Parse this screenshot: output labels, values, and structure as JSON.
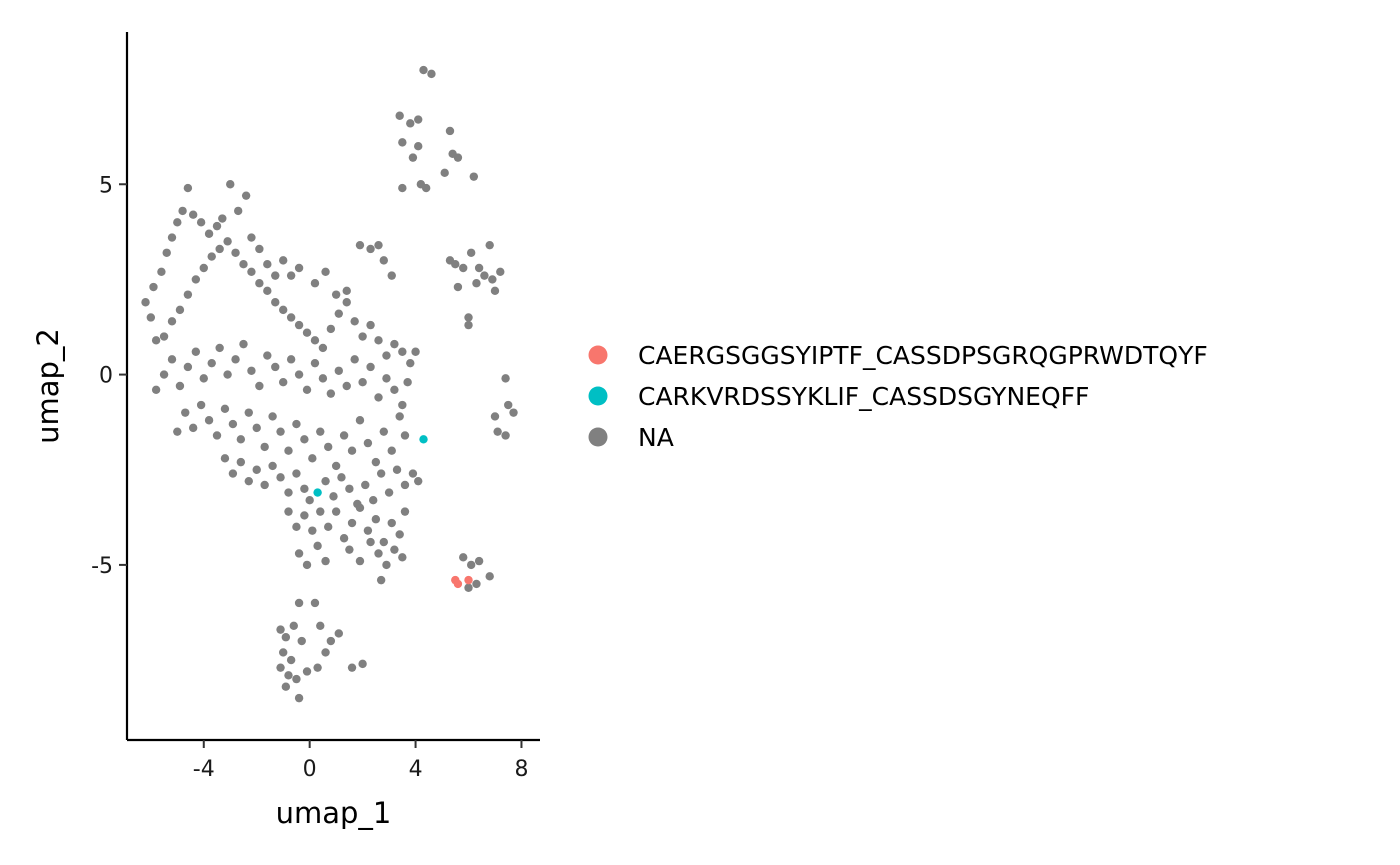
{
  "chart_data": {
    "type": "scatter",
    "xlabel": "umap_1",
    "ylabel": "umap_2",
    "xlim": [
      -6.9,
      8.7
    ],
    "ylim": [
      -9.6,
      9.0
    ],
    "x_ticks": [
      {
        "value": -4,
        "label": "-4"
      },
      {
        "value": 0,
        "label": "0"
      },
      {
        "value": 4,
        "label": "4"
      },
      {
        "value": 8,
        "label": "8"
      }
    ],
    "y_ticks": [
      {
        "value": -5,
        "label": "-5"
      },
      {
        "value": 0,
        "label": "0"
      },
      {
        "value": 5,
        "label": "5"
      }
    ],
    "grid": false,
    "legend_position": "right",
    "series": [
      {
        "name": "CAERGSGGSYIPTF_CASSDPSGRQGPRWDTQYF",
        "color": "#F8766D",
        "points": [
          [
            5.5,
            -5.4
          ],
          [
            5.6,
            -5.5
          ],
          [
            6.0,
            -5.4
          ]
        ]
      },
      {
        "name": "CARKVRDSSYKLIF_CASSDSGYNEQFF",
        "color": "#00BFC4",
        "points": [
          [
            4.3,
            -1.7
          ],
          [
            0.3,
            -3.1
          ]
        ]
      },
      {
        "name": "NA",
        "color": "#808080",
        "points": [
          [
            -6.2,
            1.9
          ],
          [
            -6.0,
            1.5
          ],
          [
            -5.8,
            0.9
          ],
          [
            -5.9,
            2.3
          ],
          [
            -5.6,
            2.7
          ],
          [
            -5.4,
            3.2
          ],
          [
            -5.2,
            3.6
          ],
          [
            -5.0,
            4.0
          ],
          [
            -4.8,
            4.3
          ],
          [
            -4.6,
            4.9
          ],
          [
            -4.4,
            4.2
          ],
          [
            -4.1,
            4.0
          ],
          [
            -3.8,
            3.7
          ],
          [
            -3.5,
            3.9
          ],
          [
            -3.3,
            4.1
          ],
          [
            -3.0,
            5.0
          ],
          [
            -2.7,
            4.3
          ],
          [
            -2.4,
            4.7
          ],
          [
            -2.2,
            3.6
          ],
          [
            -1.9,
            3.3
          ],
          [
            -1.6,
            2.9
          ],
          [
            -1.3,
            2.6
          ],
          [
            -1.0,
            3.0
          ],
          [
            -0.7,
            2.6
          ],
          [
            -0.4,
            2.8
          ],
          [
            0.2,
            2.4
          ],
          [
            0.6,
            2.7
          ],
          [
            1.0,
            2.1
          ],
          [
            1.4,
            2.2
          ],
          [
            1.9,
            3.4
          ],
          [
            2.3,
            3.3
          ],
          [
            2.6,
            3.4
          ],
          [
            2.8,
            3.0
          ],
          [
            3.1,
            2.6
          ],
          [
            -5.5,
            1.0
          ],
          [
            -5.2,
            1.4
          ],
          [
            -4.9,
            1.7
          ],
          [
            -4.6,
            2.1
          ],
          [
            -4.3,
            2.5
          ],
          [
            -4.0,
            2.8
          ],
          [
            -3.7,
            3.1
          ],
          [
            -3.4,
            3.3
          ],
          [
            -3.1,
            3.5
          ],
          [
            -2.8,
            3.2
          ],
          [
            -2.5,
            2.9
          ],
          [
            -2.2,
            2.7
          ],
          [
            -1.9,
            2.4
          ],
          [
            -1.6,
            2.2
          ],
          [
            -1.3,
            1.9
          ],
          [
            -1.0,
            1.7
          ],
          [
            -0.7,
            1.5
          ],
          [
            -0.4,
            1.3
          ],
          [
            -0.1,
            1.1
          ],
          [
            0.2,
            0.9
          ],
          [
            0.5,
            0.7
          ],
          [
            0.8,
            1.2
          ],
          [
            1.1,
            1.6
          ],
          [
            1.4,
            1.9
          ],
          [
            1.7,
            1.4
          ],
          [
            2.0,
            1.0
          ],
          [
            2.3,
            1.3
          ],
          [
            2.6,
            0.9
          ],
          [
            2.9,
            0.5
          ],
          [
            3.2,
            0.8
          ],
          [
            3.5,
            0.6
          ],
          [
            3.8,
            0.3
          ],
          [
            4.0,
            0.6
          ],
          [
            -5.8,
            -0.4
          ],
          [
            -5.5,
            0.0
          ],
          [
            -5.2,
            0.4
          ],
          [
            -4.9,
            -0.3
          ],
          [
            -4.6,
            0.2
          ],
          [
            -4.3,
            0.6
          ],
          [
            -4.0,
            -0.1
          ],
          [
            -3.7,
            0.3
          ],
          [
            -3.4,
            0.7
          ],
          [
            -3.1,
            0.0
          ],
          [
            -2.8,
            0.4
          ],
          [
            -2.5,
            0.8
          ],
          [
            -2.2,
            0.1
          ],
          [
            -1.9,
            -0.3
          ],
          [
            -1.6,
            0.5
          ],
          [
            -1.3,
            0.2
          ],
          [
            -1.0,
            -0.2
          ],
          [
            -0.7,
            0.4
          ],
          [
            -0.4,
            0.0
          ],
          [
            -0.1,
            -0.4
          ],
          [
            0.2,
            0.3
          ],
          [
            0.5,
            -0.1
          ],
          [
            0.8,
            -0.5
          ],
          [
            1.1,
            0.1
          ],
          [
            1.4,
            -0.3
          ],
          [
            1.7,
            0.4
          ],
          [
            2.0,
            -0.2
          ],
          [
            2.3,
            0.2
          ],
          [
            2.6,
            -0.6
          ],
          [
            2.9,
            -0.1
          ],
          [
            3.2,
            -0.4
          ],
          [
            3.5,
            -0.8
          ],
          [
            3.7,
            -0.2
          ],
          [
            -5.0,
            -1.5
          ],
          [
            -4.7,
            -1.0
          ],
          [
            -4.4,
            -1.4
          ],
          [
            -4.1,
            -0.8
          ],
          [
            -3.8,
            -1.2
          ],
          [
            -3.5,
            -1.6
          ],
          [
            -3.2,
            -0.9
          ],
          [
            -2.9,
            -1.3
          ],
          [
            -2.6,
            -1.7
          ],
          [
            -2.3,
            -1.0
          ],
          [
            -2.0,
            -1.4
          ],
          [
            -1.7,
            -1.9
          ],
          [
            -1.4,
            -1.1
          ],
          [
            -1.1,
            -1.5
          ],
          [
            -0.8,
            -2.0
          ],
          [
            -0.5,
            -1.3
          ],
          [
            -0.2,
            -1.7
          ],
          [
            0.1,
            -2.2
          ],
          [
            0.4,
            -1.5
          ],
          [
            0.7,
            -1.9
          ],
          [
            1.0,
            -2.4
          ],
          [
            1.3,
            -1.6
          ],
          [
            1.6,
            -2.0
          ],
          [
            1.9,
            -1.2
          ],
          [
            2.2,
            -1.8
          ],
          [
            2.5,
            -2.3
          ],
          [
            2.8,
            -1.5
          ],
          [
            3.1,
            -2.0
          ],
          [
            3.4,
            -1.1
          ],
          [
            3.6,
            -1.6
          ],
          [
            -3.2,
            -2.2
          ],
          [
            -2.9,
            -2.6
          ],
          [
            -2.6,
            -2.3
          ],
          [
            -2.3,
            -2.8
          ],
          [
            -2.0,
            -2.5
          ],
          [
            -1.7,
            -2.9
          ],
          [
            -1.4,
            -2.4
          ],
          [
            -1.1,
            -2.7
          ],
          [
            -0.8,
            -3.1
          ],
          [
            -0.5,
            -2.6
          ],
          [
            -0.2,
            -3.0
          ],
          [
            0.0,
            -3.3
          ],
          [
            0.6,
            -2.8
          ],
          [
            0.9,
            -3.2
          ],
          [
            1.2,
            -2.7
          ],
          [
            1.5,
            -3.0
          ],
          [
            1.8,
            -3.4
          ],
          [
            2.1,
            -2.9
          ],
          [
            2.4,
            -3.3
          ],
          [
            2.7,
            -2.6
          ],
          [
            3.0,
            -3.1
          ],
          [
            3.3,
            -2.5
          ],
          [
            3.6,
            -2.9
          ],
          [
            3.9,
            -2.6
          ],
          [
            4.1,
            -2.8
          ],
          [
            -0.8,
            -3.6
          ],
          [
            -0.5,
            -4.0
          ],
          [
            -0.2,
            -3.7
          ],
          [
            0.1,
            -4.1
          ],
          [
            0.4,
            -3.6
          ],
          [
            0.7,
            -4.0
          ],
          [
            1.0,
            -3.6
          ],
          [
            1.3,
            -4.3
          ],
          [
            1.6,
            -3.9
          ],
          [
            1.9,
            -3.5
          ],
          [
            2.2,
            -4.1
          ],
          [
            2.5,
            -3.8
          ],
          [
            2.8,
            -4.4
          ],
          [
            3.1,
            -3.9
          ],
          [
            3.4,
            -4.2
          ],
          [
            3.6,
            -3.6
          ],
          [
            -0.4,
            -4.7
          ],
          [
            -0.1,
            -5.0
          ],
          [
            0.3,
            -4.5
          ],
          [
            0.6,
            -4.9
          ],
          [
            1.5,
            -4.6
          ],
          [
            1.9,
            -4.9
          ],
          [
            2.3,
            -4.4
          ],
          [
            2.6,
            -4.7
          ],
          [
            2.9,
            -5.0
          ],
          [
            3.2,
            -4.6
          ],
          [
            3.5,
            -4.8
          ],
          [
            2.7,
            -5.4
          ],
          [
            0.2,
            -6.0
          ],
          [
            -0.4,
            -6.0
          ],
          [
            -0.6,
            -6.6
          ],
          [
            -0.9,
            -6.9
          ],
          [
            -1.1,
            -6.7
          ],
          [
            -0.3,
            -7.0
          ],
          [
            0.4,
            -6.6
          ],
          [
            0.8,
            -7.0
          ],
          [
            1.1,
            -6.8
          ],
          [
            0.6,
            -7.3
          ],
          [
            0.3,
            -7.7
          ],
          [
            -0.1,
            -7.8
          ],
          [
            -0.5,
            -8.0
          ],
          [
            -0.8,
            -7.9
          ],
          [
            -1.1,
            -7.7
          ],
          [
            -0.9,
            -8.2
          ],
          [
            -0.4,
            -8.5
          ],
          [
            -1.0,
            -7.3
          ],
          [
            -0.7,
            -7.5
          ],
          [
            1.6,
            -7.7
          ],
          [
            2.0,
            -7.6
          ],
          [
            4.3,
            8.0
          ],
          [
            4.6,
            7.9
          ],
          [
            3.4,
            6.8
          ],
          [
            3.8,
            6.6
          ],
          [
            4.1,
            6.7
          ],
          [
            3.5,
            6.1
          ],
          [
            4.1,
            6.0
          ],
          [
            3.9,
            5.7
          ],
          [
            4.2,
            5.0
          ],
          [
            4.4,
            4.9
          ],
          [
            3.5,
            4.9
          ],
          [
            5.3,
            6.4
          ],
          [
            5.4,
            5.8
          ],
          [
            5.1,
            5.3
          ],
          [
            5.6,
            5.7
          ],
          [
            6.2,
            5.2
          ],
          [
            5.3,
            3.0
          ],
          [
            5.5,
            2.9
          ],
          [
            5.8,
            2.8
          ],
          [
            6.1,
            3.2
          ],
          [
            6.4,
            2.8
          ],
          [
            6.6,
            2.6
          ],
          [
            6.9,
            2.5
          ],
          [
            7.0,
            2.2
          ],
          [
            6.8,
            3.4
          ],
          [
            7.2,
            2.7
          ],
          [
            6.3,
            2.4
          ],
          [
            5.6,
            2.3
          ],
          [
            6.0,
            1.5
          ],
          [
            6.0,
            1.3
          ],
          [
            7.4,
            -0.1
          ],
          [
            7.5,
            -0.8
          ],
          [
            7.7,
            -1.0
          ],
          [
            7.0,
            -1.1
          ],
          [
            7.4,
            -1.6
          ],
          [
            7.1,
            -1.5
          ],
          [
            5.8,
            -4.8
          ],
          [
            6.1,
            -5.0
          ],
          [
            6.4,
            -4.9
          ],
          [
            6.0,
            -5.6
          ],
          [
            6.3,
            -5.5
          ],
          [
            6.8,
            -5.3
          ]
        ]
      }
    ]
  }
}
